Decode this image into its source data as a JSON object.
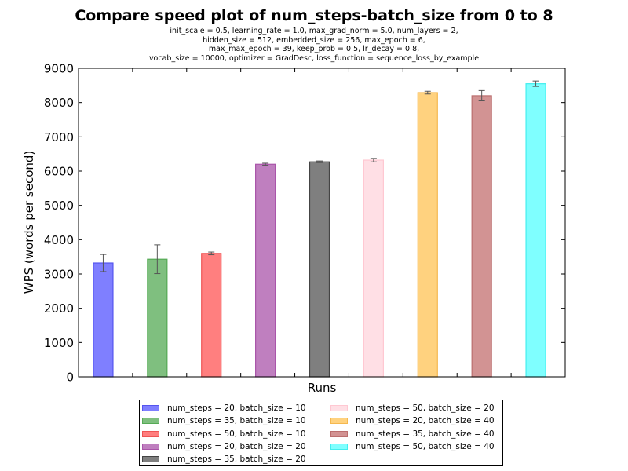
{
  "chart_data": {
    "type": "bar",
    "title": "Compare speed plot of num_steps-batch_size from 0 to 8",
    "subtitle_lines": [
      "init_scale = 0.5, learning_rate = 1.0, max_grad_norm = 5.0, num_layers = 2,",
      "hidden_size = 512, embedded_size = 256, max_epoch = 6,",
      "max_max_epoch = 39, keep_prob = 0.5, lr_decay = 0.8,",
      "vocab_size = 10000, optimizer = GradDesc, loss_function = sequence_loss_by_example"
    ],
    "xlabel": "Runs",
    "ylabel": "WPS (words per second)",
    "ylim": [
      0,
      9000
    ],
    "yticks": [
      0,
      1000,
      2000,
      3000,
      4000,
      5000,
      6000,
      7000,
      8000,
      9000
    ],
    "grid": false,
    "legend_position": "bottom-center",
    "series": [
      {
        "name": "num_steps = 20, batch_size = 10",
        "value": 3320,
        "error": 250,
        "color": "#7f7fff",
        "edge": "#5555ee"
      },
      {
        "name": "num_steps = 35, batch_size = 10",
        "value": 3430,
        "error": 420,
        "color": "#7fbf7f",
        "edge": "#55aa55"
      },
      {
        "name": "num_steps = 50, batch_size = 10",
        "value": 3600,
        "error": 40,
        "color": "#ff7f7f",
        "edge": "#ee5555"
      },
      {
        "name": "num_steps = 20, batch_size = 20",
        "value": 6200,
        "error": 30,
        "color": "#bf7fbf",
        "edge": "#aa55aa"
      },
      {
        "name": "num_steps = 35, batch_size = 20",
        "value": 6270,
        "error": 25,
        "color": "#7f7f7f",
        "edge": "#444444"
      },
      {
        "name": "num_steps = 50, batch_size = 20",
        "value": 6320,
        "error": 50,
        "color": "#ffdfe5",
        "edge": "#ffc8d2"
      },
      {
        "name": "num_steps = 20, batch_size = 40",
        "value": 8290,
        "error": 40,
        "color": "#ffd27f",
        "edge": "#f5b84f"
      },
      {
        "name": "num_steps = 35, batch_size = 40",
        "value": 8200,
        "error": 150,
        "color": "#d29393",
        "edge": "#bb6f6f"
      },
      {
        "name": "num_steps = 50, batch_size = 40",
        "value": 8550,
        "error": 80,
        "color": "#7fffff",
        "edge": "#44eeee"
      }
    ]
  }
}
